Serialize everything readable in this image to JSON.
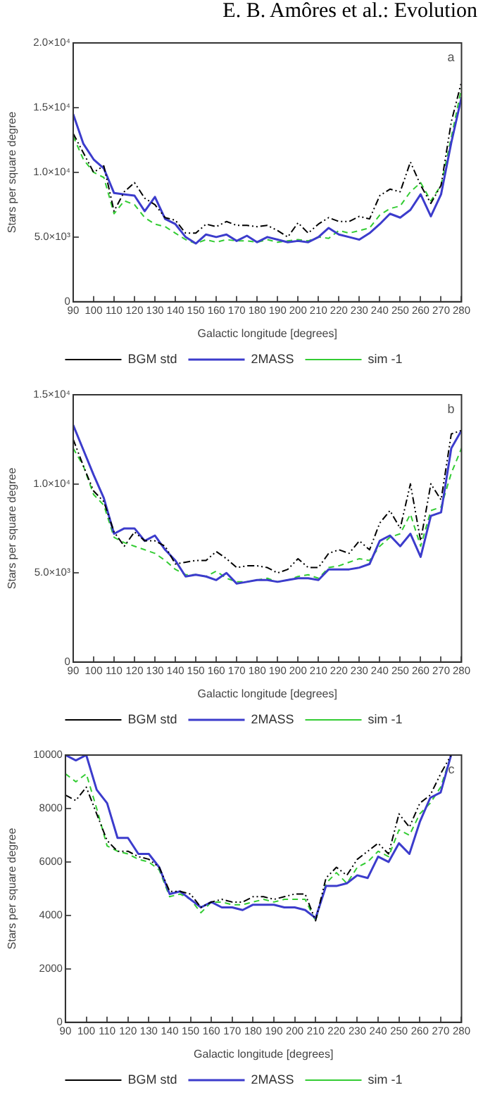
{
  "chart_data": [
    {
      "type": "line",
      "title": "E. B. Amôres  et al.: Evolution",
      "annotations": [
        "a"
      ],
      "xlabel": "Galactic longitude [degrees]",
      "ylabel": "Stars per square degree",
      "legend": "bottom",
      "grid": false,
      "marker": "none",
      "x": [
        90,
        95,
        100,
        105,
        110,
        115,
        120,
        125,
        130,
        135,
        140,
        145,
        150,
        155,
        160,
        165,
        170,
        175,
        180,
        185,
        190,
        195,
        200,
        205,
        210,
        215,
        220,
        225,
        230,
        235,
        240,
        245,
        250,
        255,
        260,
        265,
        270,
        275,
        280
      ],
      "xlim": [
        90,
        280
      ],
      "xticks": [
        90,
        100,
        110,
        120,
        130,
        140,
        150,
        160,
        170,
        180,
        190,
        200,
        210,
        220,
        230,
        240,
        250,
        260,
        270,
        280
      ],
      "ylim": [
        0,
        20000
      ],
      "yticks": [
        0,
        {
          "value": 5000,
          "label": "5.0×10³"
        },
        {
          "value": 10000,
          "label": "1.0×10⁴"
        },
        {
          "value": 15000,
          "label": "1.5×10⁴"
        },
        {
          "value": 20000,
          "label": "2.0×10⁴"
        }
      ],
      "series": [
        {
          "name": "BGM std",
          "color": "#000000",
          "line_style": "dotted",
          "values": [
            13000,
            11500,
            10000,
            10500,
            7000,
            8500,
            9200,
            8000,
            7500,
            6500,
            6300,
            5300,
            5300,
            6000,
            5800,
            6200,
            5900,
            5900,
            5800,
            5900,
            5500,
            5000,
            6100,
            5300,
            6000,
            6500,
            6200,
            6200,
            6600,
            6400,
            8200,
            8700,
            8500,
            10800,
            9000,
            7600,
            9000,
            13900,
            17000
          ]
        },
        {
          "name": "2MASS",
          "color": "#3c3ccc",
          "line_style": "solid",
          "values": [
            14500,
            12200,
            11000,
            10300,
            8400,
            8300,
            8200,
            7000,
            8100,
            6400,
            6000,
            5000,
            4500,
            5200,
            5000,
            5200,
            4700,
            5100,
            4600,
            5000,
            4800,
            4600,
            4700,
            4600,
            5000,
            5700,
            5200,
            5000,
            4800,
            5300,
            6000,
            6800,
            6500,
            7100,
            8300,
            6600,
            8300,
            12300,
            15800
          ]
        },
        {
          "name": "sim -1",
          "color": "#33cc33",
          "line_style": "dashed",
          "values": [
            12800,
            11000,
            10000,
            9600,
            6800,
            7800,
            7500,
            6500,
            6000,
            5800,
            5300,
            4800,
            4500,
            4800,
            4600,
            4800,
            4700,
            4700,
            4600,
            4800,
            4600,
            4700,
            4800,
            4700,
            5000,
            4900,
            5500,
            5300,
            5500,
            5700,
            6700,
            7200,
            7400,
            8500,
            9200,
            7800,
            9000,
            12700,
            16500
          ]
        }
      ]
    },
    {
      "type": "line",
      "annotations": [
        "b"
      ],
      "xlabel": "Galactic longitude [degrees]",
      "ylabel": "Stars per square degree",
      "legend": "bottom",
      "grid": false,
      "marker": "none",
      "x": [
        90,
        95,
        100,
        105,
        110,
        115,
        120,
        125,
        130,
        135,
        140,
        145,
        150,
        155,
        160,
        165,
        170,
        175,
        180,
        185,
        190,
        195,
        200,
        205,
        210,
        215,
        220,
        225,
        230,
        235,
        240,
        245,
        250,
        255,
        260,
        265,
        270,
        275,
        280
      ],
      "xlim": [
        90,
        280
      ],
      "xticks": [
        90,
        100,
        110,
        120,
        130,
        140,
        150,
        160,
        170,
        180,
        190,
        200,
        210,
        220,
        230,
        240,
        250,
        260,
        270,
        280
      ],
      "ylim": [
        0,
        15000
      ],
      "yticks": [
        0,
        {
          "value": 5000,
          "label": "5.0×10³"
        },
        {
          "value": 10000,
          "label": "1.0×10⁴"
        },
        {
          "value": 15000,
          "label": "1.5×10⁴"
        }
      ],
      "series": [
        {
          "name": "BGM std",
          "color": "#000000",
          "line_style": "dotted",
          "values": [
            12500,
            11000,
            9600,
            9000,
            7300,
            6500,
            7300,
            6800,
            6800,
            6500,
            5500,
            5600,
            5700,
            5700,
            6200,
            5800,
            5300,
            5400,
            5400,
            5300,
            5000,
            5200,
            5800,
            5300,
            5300,
            6100,
            6300,
            6100,
            6800,
            6300,
            7800,
            8500,
            7500,
            10000,
            6800,
            10000,
            9100,
            12800,
            13000
          ]
        },
        {
          "name": "2MASS",
          "color": "#3c3ccc",
          "line_style": "solid",
          "values": [
            13300,
            11900,
            10500,
            9200,
            7200,
            7500,
            7500,
            6800,
            7100,
            6300,
            5700,
            4800,
            4900,
            4800,
            4600,
            5000,
            4400,
            4500,
            4600,
            4600,
            4500,
            4600,
            4700,
            4700,
            4600,
            5200,
            5200,
            5200,
            5300,
            5500,
            6800,
            7100,
            6500,
            7200,
            5900,
            8200,
            8400,
            12000,
            13000
          ]
        },
        {
          "name": "sim -1",
          "color": "#33cc33",
          "line_style": "dashed",
          "values": [
            12000,
            11000,
            9400,
            8800,
            7000,
            6700,
            6500,
            6300,
            6100,
            5700,
            5200,
            4900,
            4900,
            4800,
            5100,
            4700,
            4500,
            4500,
            4600,
            4700,
            4500,
            4600,
            4800,
            4900,
            4700,
            5300,
            5400,
            5600,
            5800,
            5700,
            6500,
            7000,
            7200,
            8300,
            6500,
            8500,
            8700,
            10600,
            12000
          ]
        }
      ]
    },
    {
      "type": "line",
      "annotations": [
        "c"
      ],
      "xlabel": "Galactic longitude [degrees]",
      "ylabel": "Stars per square degree",
      "legend": "bottom",
      "grid": false,
      "marker": "none",
      "x": [
        90,
        95,
        100,
        105,
        110,
        115,
        120,
        125,
        130,
        135,
        140,
        145,
        150,
        155,
        160,
        165,
        170,
        175,
        180,
        185,
        190,
        195,
        200,
        205,
        210,
        215,
        220,
        225,
        230,
        235,
        240,
        245,
        250,
        255,
        260,
        265,
        270,
        275
      ],
      "xlim": [
        90,
        280
      ],
      "xticks": [
        90,
        100,
        110,
        120,
        130,
        140,
        150,
        160,
        170,
        180,
        190,
        200,
        210,
        220,
        230,
        240,
        250,
        260,
        270,
        280
      ],
      "ylim": [
        0,
        10000
      ],
      "yticks": [
        0,
        2000,
        4000,
        6000,
        8000,
        10000
      ],
      "series": [
        {
          "name": "BGM std",
          "color": "#000000",
          "line_style": "dotted",
          "values": [
            8500,
            8300,
            8800,
            7800,
            6800,
            6400,
            6400,
            6200,
            6100,
            5800,
            4900,
            4900,
            4800,
            4300,
            4500,
            4600,
            4500,
            4500,
            4700,
            4700,
            4600,
            4700,
            4800,
            4800,
            3800,
            5400,
            5800,
            5500,
            6100,
            6400,
            6700,
            6300,
            7800,
            7300,
            8200,
            8500,
            9300,
            10000
          ]
        },
        {
          "name": "2MASS",
          "color": "#3c3ccc",
          "line_style": "solid",
          "values": [
            10000,
            9800,
            10000,
            8700,
            8200,
            6900,
            6900,
            6300,
            6300,
            5800,
            4800,
            4900,
            4600,
            4300,
            4500,
            4300,
            4300,
            4200,
            4400,
            4400,
            4400,
            4300,
            4300,
            4200,
            3900,
            5100,
            5100,
            5200,
            5500,
            5400,
            6200,
            6000,
            6700,
            6300,
            7500,
            8400,
            8600,
            10000
          ]
        },
        {
          "name": "sim -1",
          "color": "#33cc33",
          "line_style": "dashed",
          "values": [
            9300,
            9000,
            9300,
            8000,
            6600,
            6400,
            6300,
            6100,
            6000,
            5700,
            4700,
            4800,
            4600,
            4100,
            4500,
            4500,
            4400,
            4400,
            4500,
            4600,
            4500,
            4600,
            4600,
            4600,
            3800,
            5200,
            5600,
            5200,
            5800,
            6000,
            6400,
            6200,
            7200,
            7000,
            7800,
            8200,
            8800,
            10000
          ]
        }
      ]
    }
  ]
}
